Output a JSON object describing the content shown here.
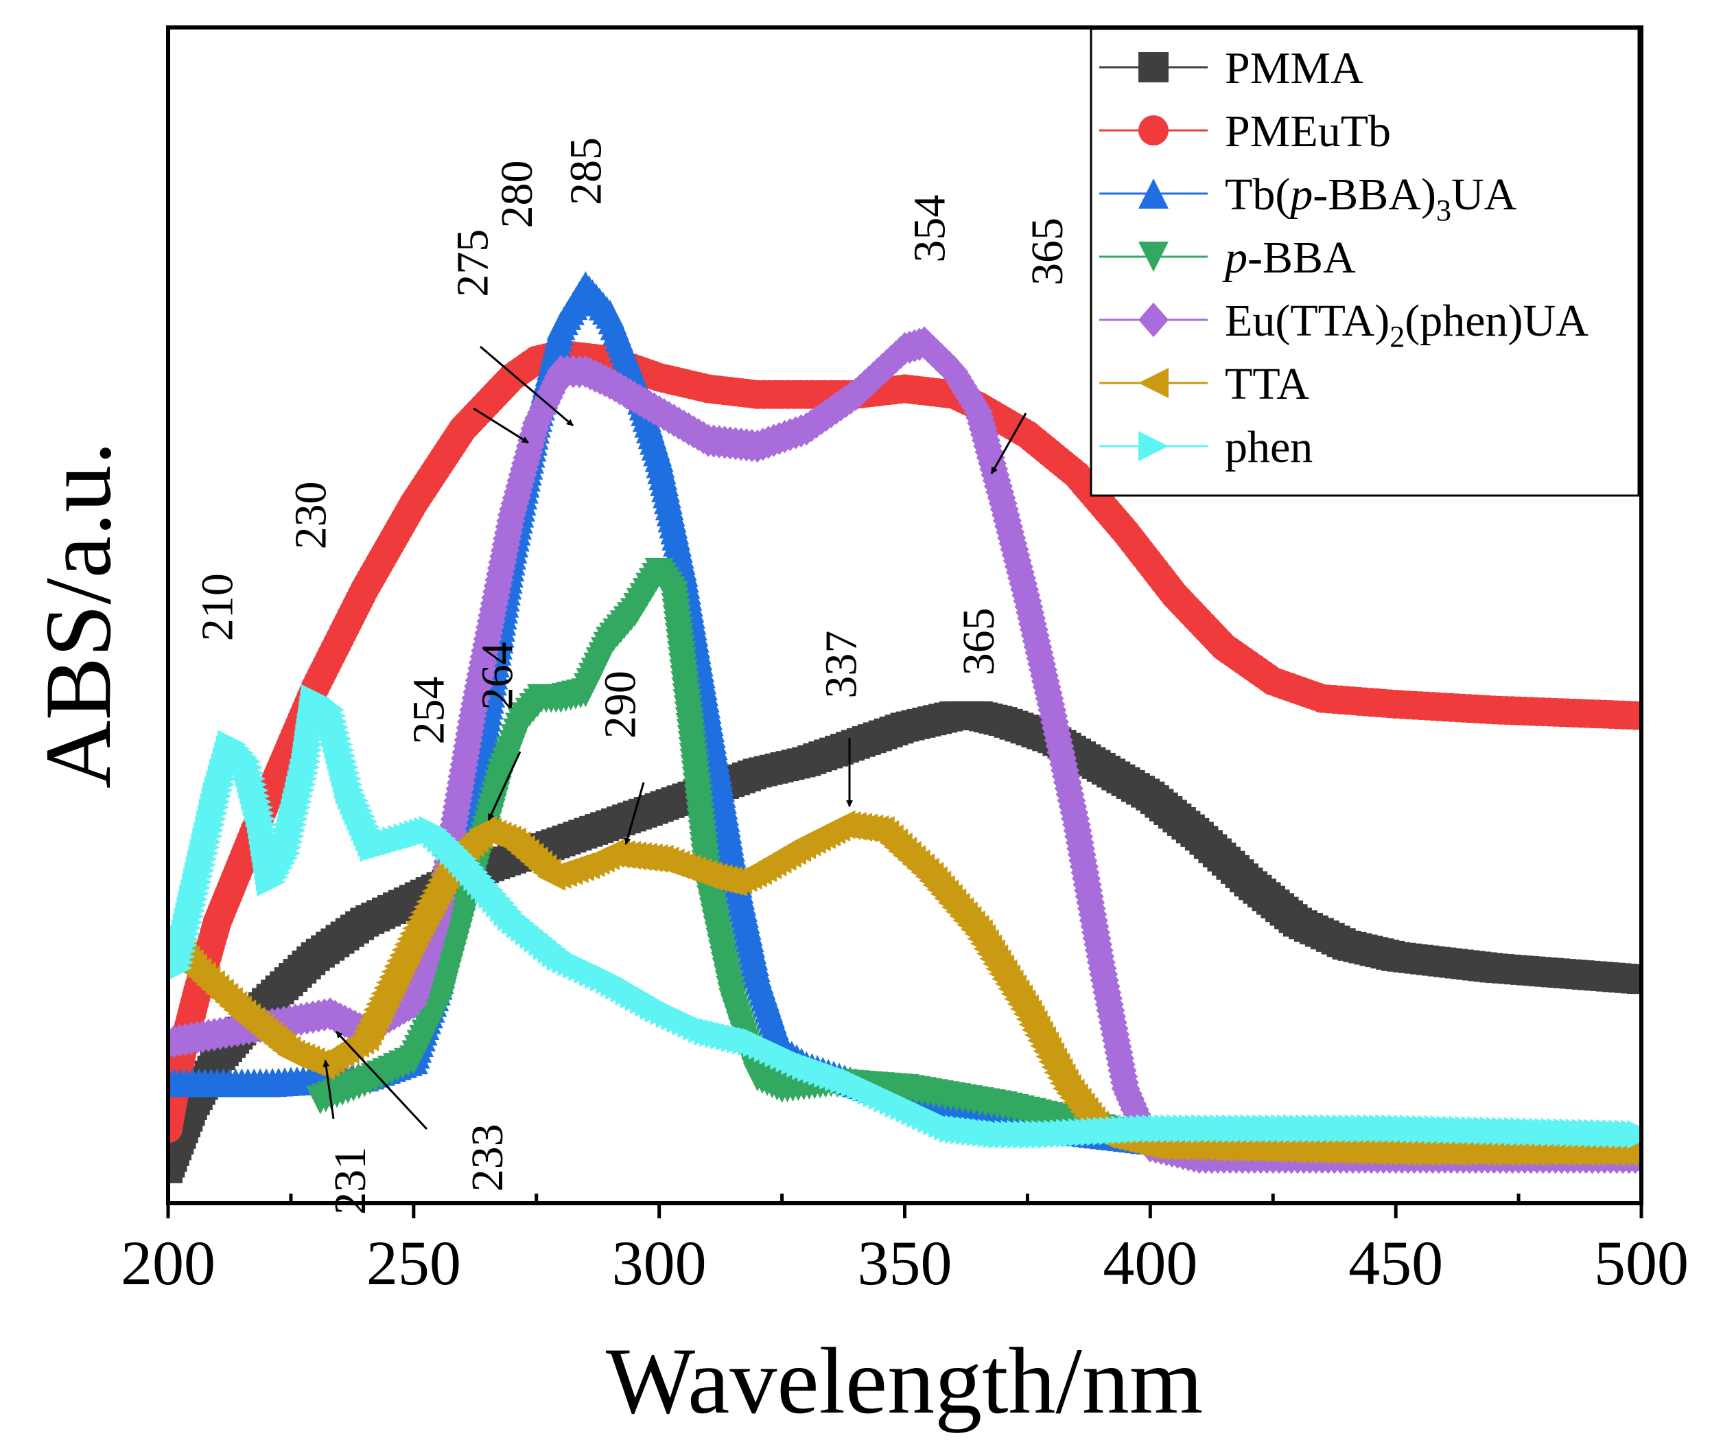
{
  "chart_data": {
    "type": "line",
    "title": "",
    "xlabel": "Wavelength/nm",
    "ylabel": "ABS/a.u.",
    "xlim": [
      200,
      500
    ],
    "ylim": [
      0,
      2.05
    ],
    "x_ticks": [
      200,
      250,
      300,
      350,
      400,
      450,
      500
    ],
    "x_tick_labels": [
      "200",
      "250",
      "300",
      "350",
      "400",
      "450",
      "500"
    ],
    "x_minor_ticks": [
      225,
      275,
      325,
      375,
      425,
      475
    ],
    "grid": false,
    "legend_position": "top-right",
    "series": [
      {
        "name": "PMMA",
        "name_main": "PMMA",
        "name_sub": "",
        "name_tail": "",
        "name_italic_prefix": "",
        "marker": "square",
        "color": "#3f3f3f",
        "points": [
          [
            200,
            0.06
          ],
          [
            205,
            0.17
          ],
          [
            210,
            0.25
          ],
          [
            215,
            0.3
          ],
          [
            220,
            0.35
          ],
          [
            230,
            0.43
          ],
          [
            240,
            0.49
          ],
          [
            250,
            0.53
          ],
          [
            260,
            0.57
          ],
          [
            270,
            0.6
          ],
          [
            280,
            0.63
          ],
          [
            290,
            0.66
          ],
          [
            300,
            0.69
          ],
          [
            310,
            0.72
          ],
          [
            320,
            0.75
          ],
          [
            330,
            0.77
          ],
          [
            340,
            0.8
          ],
          [
            350,
            0.83
          ],
          [
            360,
            0.85
          ],
          [
            365,
            0.85
          ],
          [
            370,
            0.84
          ],
          [
            380,
            0.81
          ],
          [
            390,
            0.76
          ],
          [
            400,
            0.71
          ],
          [
            410,
            0.64
          ],
          [
            420,
            0.56
          ],
          [
            430,
            0.49
          ],
          [
            440,
            0.45
          ],
          [
            450,
            0.43
          ],
          [
            470,
            0.41
          ],
          [
            500,
            0.39
          ]
        ]
      },
      {
        "name": "PMEuTb",
        "name_main": "PMEuTb",
        "name_sub": "",
        "name_tail": "",
        "name_italic_prefix": "",
        "marker": "circle",
        "color": "#ef3b3b",
        "points": [
          [
            200,
            0.13
          ],
          [
            203,
            0.27
          ],
          [
            206,
            0.37
          ],
          [
            210,
            0.49
          ],
          [
            220,
            0.7
          ],
          [
            230,
            0.9
          ],
          [
            240,
            1.07
          ],
          [
            250,
            1.22
          ],
          [
            260,
            1.35
          ],
          [
            270,
            1.44
          ],
          [
            275,
            1.47
          ],
          [
            280,
            1.48
          ],
          [
            290,
            1.47
          ],
          [
            300,
            1.44
          ],
          [
            310,
            1.42
          ],
          [
            320,
            1.41
          ],
          [
            330,
            1.41
          ],
          [
            340,
            1.41
          ],
          [
            350,
            1.42
          ],
          [
            360,
            1.41
          ],
          [
            365,
            1.39
          ],
          [
            375,
            1.34
          ],
          [
            385,
            1.27
          ],
          [
            395,
            1.17
          ],
          [
            405,
            1.06
          ],
          [
            415,
            0.97
          ],
          [
            425,
            0.91
          ],
          [
            435,
            0.88
          ],
          [
            450,
            0.87
          ],
          [
            470,
            0.86
          ],
          [
            500,
            0.85
          ]
        ]
      },
      {
        "name": "Tb(p-BBA)3UA",
        "name_main": "Tb(",
        "name_italic_prefix": "p",
        "name_after_italic": "-BBA)",
        "name_sub": "3",
        "name_tail": "UA",
        "marker": "triangle-up",
        "color": "#1f6fe0",
        "points": [
          [
            200,
            0.21
          ],
          [
            220,
            0.21
          ],
          [
            240,
            0.22
          ],
          [
            250,
            0.25
          ],
          [
            255,
            0.38
          ],
          [
            262,
            0.68
          ],
          [
            270,
            1.13
          ],
          [
            275,
            1.36
          ],
          [
            280,
            1.53
          ],
          [
            285,
            1.6
          ],
          [
            290,
            1.55
          ],
          [
            295,
            1.44
          ],
          [
            300,
            1.3
          ],
          [
            305,
            1.1
          ],
          [
            310,
            0.85
          ],
          [
            315,
            0.6
          ],
          [
            320,
            0.4
          ],
          [
            325,
            0.27
          ],
          [
            330,
            0.24
          ],
          [
            340,
            0.21
          ],
          [
            350,
            0.18
          ],
          [
            360,
            0.16
          ],
          [
            380,
            0.13
          ],
          [
            400,
            0.11
          ],
          [
            450,
            0.1
          ],
          [
            500,
            0.1
          ]
        ]
      },
      {
        "name": "p-BBA",
        "name_main": "",
        "name_italic_prefix": "p",
        "name_after_italic": "-BBA",
        "name_sub": "",
        "name_tail": "",
        "marker": "triangle-down",
        "color": "#33a860",
        "points": [
          [
            231,
            0.18
          ],
          [
            240,
            0.21
          ],
          [
            250,
            0.25
          ],
          [
            255,
            0.34
          ],
          [
            262,
            0.56
          ],
          [
            268,
            0.75
          ],
          [
            272,
            0.84
          ],
          [
            276,
            0.88
          ],
          [
            280,
            0.88
          ],
          [
            285,
            0.89
          ],
          [
            290,
            0.98
          ],
          [
            295,
            1.03
          ],
          [
            300,
            1.1
          ],
          [
            303,
            1.06
          ],
          [
            306,
            0.85
          ],
          [
            310,
            0.55
          ],
          [
            315,
            0.35
          ],
          [
            320,
            0.22
          ],
          [
            325,
            0.2
          ],
          [
            335,
            0.21
          ],
          [
            350,
            0.2
          ],
          [
            370,
            0.17
          ],
          [
            390,
            0.13
          ],
          [
            400,
            0.11
          ]
        ]
      },
      {
        "name": "Eu(TTA)2(phen)UA",
        "name_main": "Eu(TTA)",
        "name_italic_prefix": "",
        "name_after_italic": "",
        "name_sub": "2",
        "name_tail": "(phen)UA",
        "marker": "diamond",
        "color": "#a86ddb",
        "points": [
          [
            200,
            0.28
          ],
          [
            220,
            0.31
          ],
          [
            233,
            0.33
          ],
          [
            240,
            0.3
          ],
          [
            250,
            0.35
          ],
          [
            255,
            0.5
          ],
          [
            262,
            0.85
          ],
          [
            270,
            1.2
          ],
          [
            275,
            1.36
          ],
          [
            280,
            1.45
          ],
          [
            285,
            1.45
          ],
          [
            290,
            1.43
          ],
          [
            300,
            1.38
          ],
          [
            310,
            1.33
          ],
          [
            320,
            1.32
          ],
          [
            330,
            1.35
          ],
          [
            340,
            1.41
          ],
          [
            350,
            1.49
          ],
          [
            354,
            1.5
          ],
          [
            360,
            1.45
          ],
          [
            365,
            1.38
          ],
          [
            370,
            1.22
          ],
          [
            375,
            1.05
          ],
          [
            380,
            0.86
          ],
          [
            385,
            0.66
          ],
          [
            390,
            0.42
          ],
          [
            395,
            0.2
          ],
          [
            400,
            0.1
          ],
          [
            410,
            0.08
          ],
          [
            450,
            0.08
          ],
          [
            500,
            0.08
          ]
        ]
      },
      {
        "name": "TTA",
        "name_main": "TTA",
        "name_italic_prefix": "",
        "name_after_italic": "",
        "name_sub": "",
        "name_tail": "",
        "marker": "triangle-left",
        "color": "#c99a12",
        "points": [
          [
            200,
            0.46
          ],
          [
            205,
            0.41
          ],
          [
            215,
            0.33
          ],
          [
            225,
            0.26
          ],
          [
            231,
            0.24
          ],
          [
            240,
            0.29
          ],
          [
            250,
            0.47
          ],
          [
            258,
            0.6
          ],
          [
            264,
            0.65
          ],
          [
            270,
            0.63
          ],
          [
            278,
            0.57
          ],
          [
            285,
            0.59
          ],
          [
            290,
            0.61
          ],
          [
            300,
            0.6
          ],
          [
            310,
            0.57
          ],
          [
            315,
            0.56
          ],
          [
            320,
            0.58
          ],
          [
            330,
            0.63
          ],
          [
            337,
            0.66
          ],
          [
            345,
            0.65
          ],
          [
            355,
            0.57
          ],
          [
            365,
            0.47
          ],
          [
            375,
            0.33
          ],
          [
            383,
            0.2
          ],
          [
            390,
            0.12
          ],
          [
            400,
            0.1
          ],
          [
            450,
            0.09
          ],
          [
            500,
            0.09
          ]
        ]
      },
      {
        "name": "phen",
        "name_main": "phen",
        "name_italic_prefix": "",
        "name_after_italic": "",
        "name_sub": "",
        "name_tail": "",
        "marker": "triangle-right",
        "color": "#5ff4f4",
        "points": [
          [
            202,
            0.41
          ],
          [
            206,
            0.56
          ],
          [
            210,
            0.71
          ],
          [
            213,
            0.8
          ],
          [
            216,
            0.77
          ],
          [
            219,
            0.67
          ],
          [
            221,
            0.56
          ],
          [
            224,
            0.61
          ],
          [
            228,
            0.76
          ],
          [
            230,
            0.88
          ],
          [
            233,
            0.86
          ],
          [
            237,
            0.72
          ],
          [
            242,
            0.62
          ],
          [
            250,
            0.64
          ],
          [
            254,
            0.65
          ],
          [
            260,
            0.6
          ],
          [
            270,
            0.5
          ],
          [
            280,
            0.43
          ],
          [
            290,
            0.39
          ],
          [
            300,
            0.34
          ],
          [
            310,
            0.3
          ],
          [
            320,
            0.28
          ],
          [
            330,
            0.24
          ],
          [
            340,
            0.21
          ],
          [
            350,
            0.17
          ],
          [
            360,
            0.13
          ],
          [
            370,
            0.12
          ],
          [
            380,
            0.12
          ],
          [
            400,
            0.13
          ],
          [
            450,
            0.13
          ],
          [
            500,
            0.12
          ]
        ]
      }
    ],
    "annotations": [
      {
        "text": "210",
        "x": 210,
        "y": 0.98
      },
      {
        "text": "230",
        "x": 229,
        "y": 1.14
      },
      {
        "text": "254",
        "x": 253,
        "y": 0.8
      },
      {
        "text": "264",
        "x": 267,
        "y": 0.86
      },
      {
        "text": "290",
        "x": 292,
        "y": 0.81
      },
      {
        "text": "275",
        "x": 262,
        "y": 1.58
      },
      {
        "text": "280",
        "x": 271,
        "y": 1.7
      },
      {
        "text": "285",
        "x": 285,
        "y": 1.74
      },
      {
        "text": "354",
        "x": 355,
        "y": 1.64
      },
      {
        "text": "365",
        "x": 379,
        "y": 1.6
      },
      {
        "text": "337",
        "x": 337,
        "y": 0.88
      },
      {
        "text": "365",
        "x": 365,
        "y": 0.92
      },
      {
        "text": "231",
        "x": 237,
        "y": -0.02
      },
      {
        "text": "233",
        "x": 265,
        "y": 0.02
      }
    ]
  }
}
